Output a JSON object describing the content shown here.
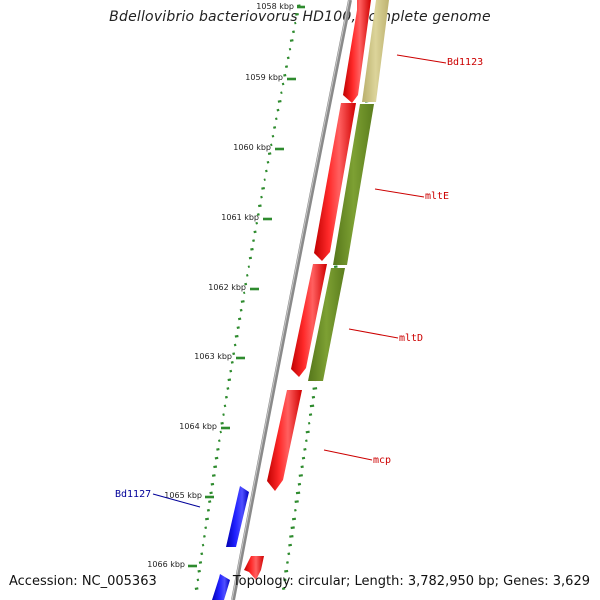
{
  "title": "Bdellovibrio bacteriovorus HD100, complete genome",
  "footer": {
    "accession": "Accession: NC_005363",
    "genome_info": "Topology: circular; Length: 3,782,950 bp; Genes: 3,629"
  },
  "scale": {
    "ticks": [
      "1058 kbp",
      "1059 kbp",
      "1060 kbp",
      "1061 kbp",
      "1062 kbp",
      "1063 kbp",
      "1064 kbp",
      "1065 kbp",
      "1066 kbp"
    ]
  },
  "genes": {
    "bd1123": {
      "label": "Bd1123",
      "color": "#cc0000"
    },
    "mlte": {
      "label": "mltE",
      "color": "#cc0000"
    },
    "mltd": {
      "label": "mltD",
      "color": "#cc0000"
    },
    "mcp": {
      "label": "mcp",
      "color": "#cc0000"
    },
    "bd1127": {
      "label": "Bd1127",
      "color": "#000099"
    }
  },
  "colors": {
    "forward_strand_gene": "#ff0000",
    "reverse_strand_gene": "#0000ff",
    "cog_olive": "#6b8e23",
    "cog_khaki": "#c8c080",
    "backbone": "#888888",
    "gc_ticks": "#2e8b2e"
  }
}
